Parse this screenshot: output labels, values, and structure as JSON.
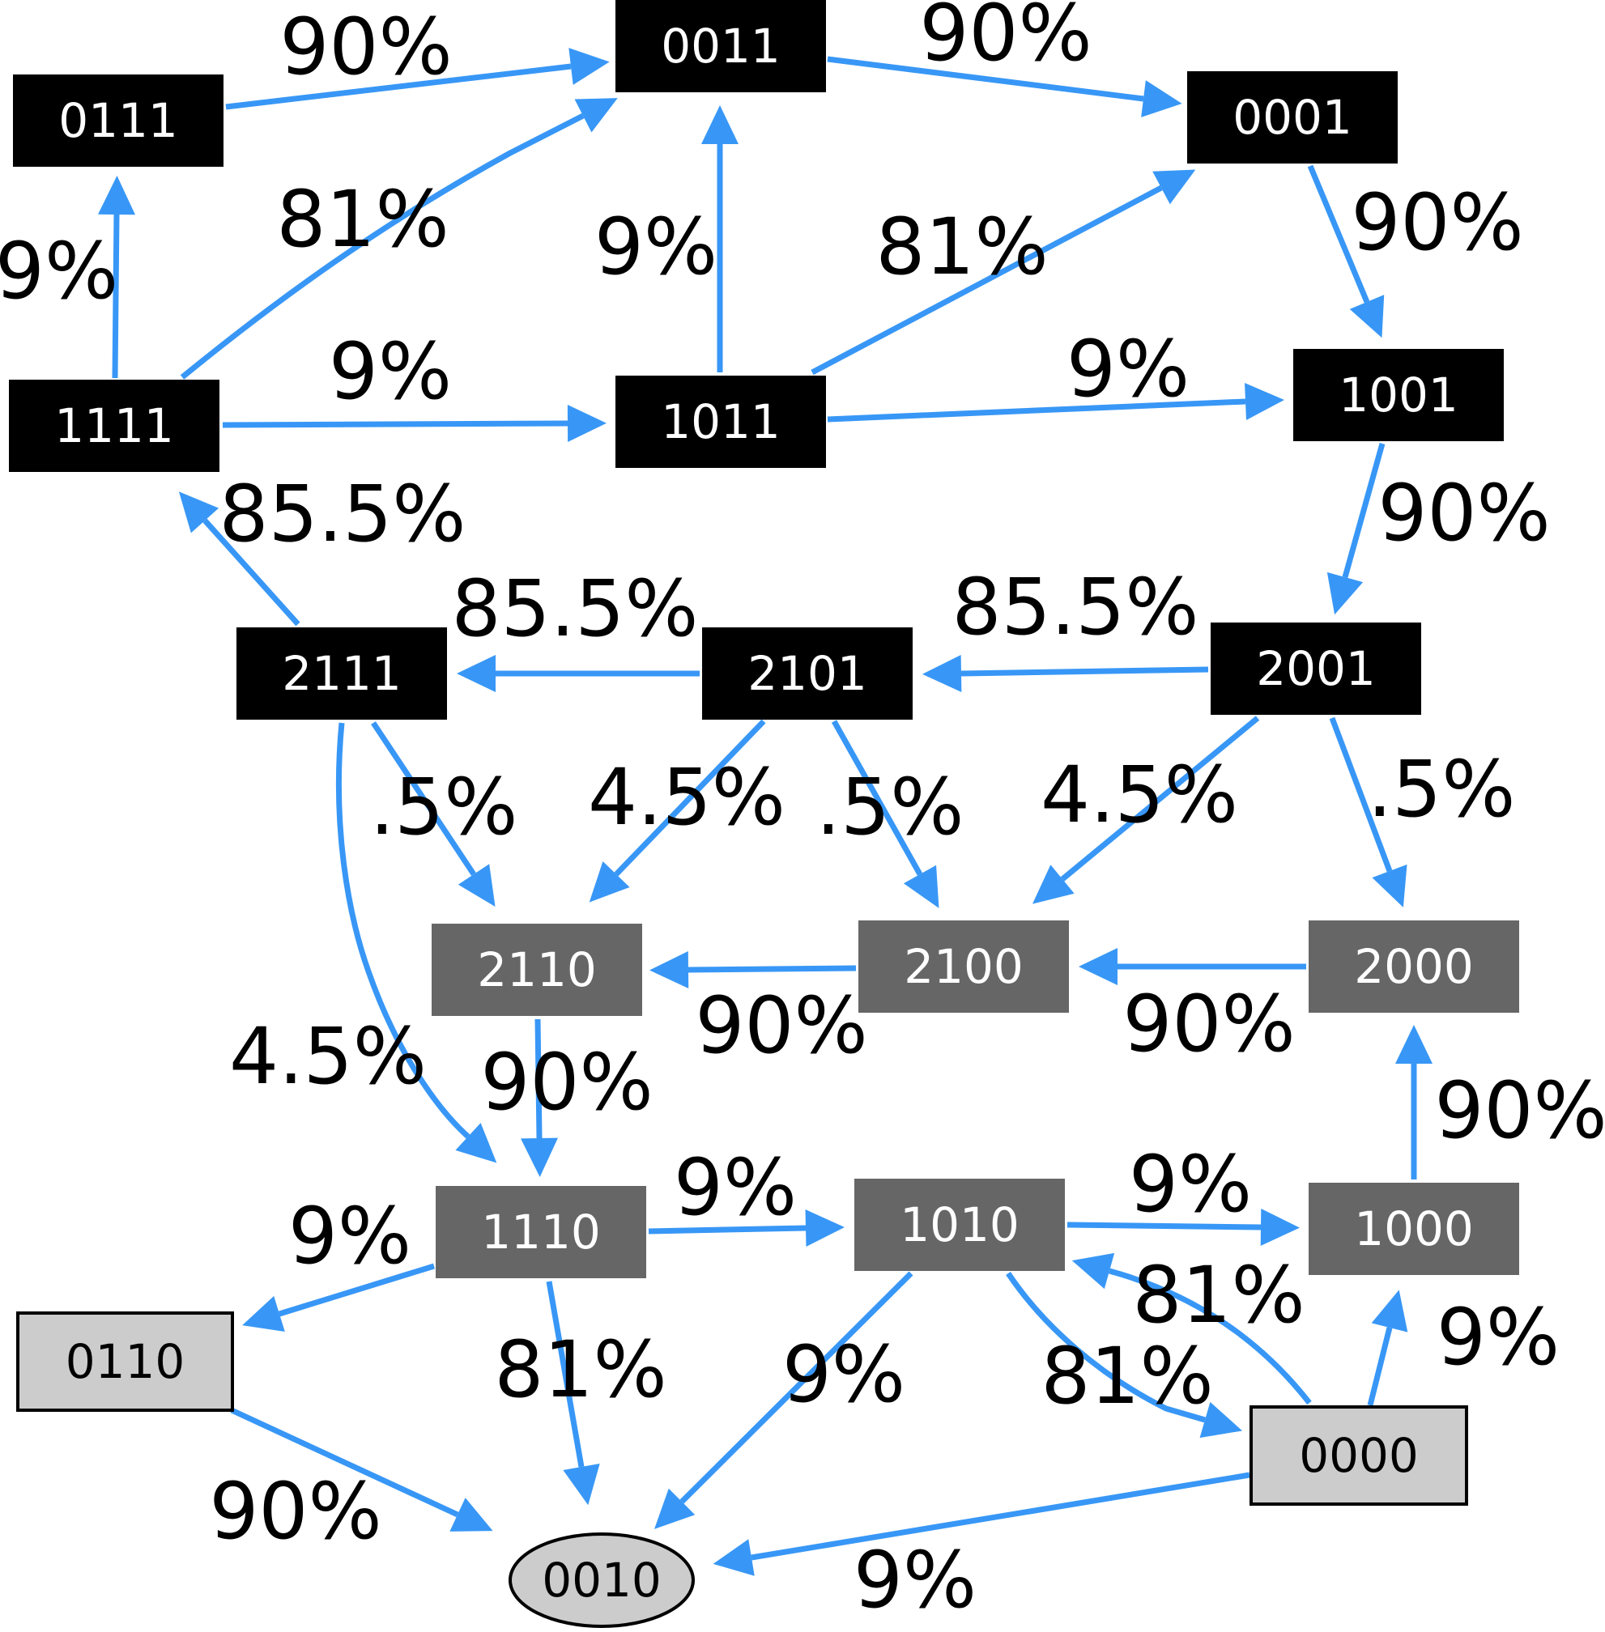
{
  "colors": {
    "edge": "#3897f6",
    "state_black": "#000000",
    "state_gray": "#666666",
    "state_light": "#cccccc",
    "text_dark": "#000000",
    "text_light": "#ffffff"
  },
  "nodes": {
    "n0111": {
      "label": "0111",
      "style": "black"
    },
    "n0011": {
      "label": "0011",
      "style": "black"
    },
    "n0001": {
      "label": "0001",
      "style": "black"
    },
    "n1111": {
      "label": "1111",
      "style": "black"
    },
    "n1011": {
      "label": "1011",
      "style": "black"
    },
    "n1001": {
      "label": "1001",
      "style": "black"
    },
    "n2111": {
      "label": "2111",
      "style": "black"
    },
    "n2101": {
      "label": "2101",
      "style": "black"
    },
    "n2001": {
      "label": "2001",
      "style": "black"
    },
    "n2110": {
      "label": "2110",
      "style": "gray"
    },
    "n2100": {
      "label": "2100",
      "style": "gray"
    },
    "n2000": {
      "label": "2000",
      "style": "gray"
    },
    "n1110": {
      "label": "1110",
      "style": "gray"
    },
    "n1010": {
      "label": "1010",
      "style": "gray"
    },
    "n1000": {
      "label": "1000",
      "style": "gray"
    },
    "n0110": {
      "label": "0110",
      "style": "light"
    },
    "n0000": {
      "label": "0000",
      "style": "light"
    },
    "n0010": {
      "label": "0010",
      "style": "light-ellipse"
    }
  },
  "edges": [
    {
      "from": "0111",
      "to": "0011",
      "label": "90%"
    },
    {
      "from": "0011",
      "to": "0001",
      "label": "90%"
    },
    {
      "from": "1111",
      "to": "0111",
      "label": "9%"
    },
    {
      "from": "1111",
      "to": "0011",
      "label": "81%"
    },
    {
      "from": "1011",
      "to": "0011",
      "label": "9%"
    },
    {
      "from": "1011",
      "to": "0001",
      "label": "81%"
    },
    {
      "from": "0001",
      "to": "1001",
      "label": "90%"
    },
    {
      "from": "1111",
      "to": "1011",
      "label": "9%"
    },
    {
      "from": "1011",
      "to": "1001",
      "label": "9%"
    },
    {
      "from": "2111",
      "to": "1111",
      "label": "85.5%"
    },
    {
      "from": "1001",
      "to": "2001",
      "label": "90%"
    },
    {
      "from": "2101",
      "to": "2111",
      "label": "85.5%"
    },
    {
      "from": "2001",
      "to": "2101",
      "label": "85.5%"
    },
    {
      "from": "2111",
      "to": "2110",
      "label": ".5%"
    },
    {
      "from": "2101",
      "to": "2110",
      "label": "4.5%"
    },
    {
      "from": "2101",
      "to": "2100",
      "label": ".5%"
    },
    {
      "from": "2001",
      "to": "2100",
      "label": "4.5%"
    },
    {
      "from": "2001",
      "to": "2000",
      "label": ".5%"
    },
    {
      "from": "2100",
      "to": "2110",
      "label": "90%"
    },
    {
      "from": "2000",
      "to": "2100",
      "label": "90%"
    },
    {
      "from": "2111",
      "to": "1110",
      "label": "4.5%"
    },
    {
      "from": "2110",
      "to": "1110",
      "label": "90%"
    },
    {
      "from": "1000",
      "to": "2000",
      "label": "90%"
    },
    {
      "from": "1110",
      "to": "1010",
      "label": "9%"
    },
    {
      "from": "1010",
      "to": "1000",
      "label": "9%"
    },
    {
      "from": "0000",
      "to": "1010",
      "label": "81%"
    },
    {
      "from": "1110",
      "to": "0110",
      "label": "9%"
    },
    {
      "from": "1110",
      "to": "0010",
      "label": "81%"
    },
    {
      "from": "1010",
      "to": "0010",
      "label": "9%"
    },
    {
      "from": "1010",
      "to": "0000",
      "label": "81%"
    },
    {
      "from": "0000",
      "to": "1000",
      "label": "9%"
    },
    {
      "from": "0110",
      "to": "0010",
      "label": "90%"
    },
    {
      "from": "0000",
      "to": "0010",
      "label": "9%"
    }
  ]
}
